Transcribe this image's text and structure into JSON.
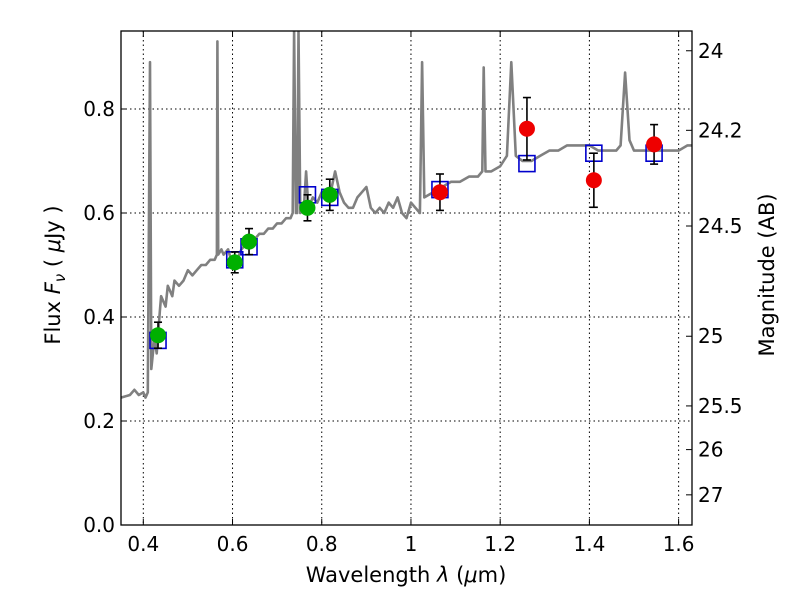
{
  "chart_data": {
    "type": "scatter",
    "xlabel": "Wavelength  λ (μm)",
    "ylabel": "Flux  F_ν  ( μJy )",
    "y2label": "Magnitude (AB)",
    "xlim": [
      0.35,
      1.63
    ],
    "ylim": [
      0.0,
      0.95
    ],
    "grid": true,
    "x_ticks": [
      0.4,
      0.6,
      0.8,
      1.0,
      1.2,
      1.4,
      1.6
    ],
    "x_tick_labels": [
      "0.4",
      "0.6",
      "0.8",
      "1",
      "1.2",
      "1.4",
      "1.6"
    ],
    "y_ticks": [
      0.0,
      0.2,
      0.4,
      0.6,
      0.8
    ],
    "y_tick_labels": [
      "0.0",
      "0.2",
      "0.4",
      "0.6",
      "0.8"
    ],
    "y2_ticks": [
      {
        "label": "24",
        "flux": 0.912
      },
      {
        "label": "24.2",
        "flux": 0.759
      },
      {
        "label": "24.5",
        "flux": 0.575
      },
      {
        "label": "25",
        "flux": 0.363
      },
      {
        "label": "25.5",
        "flux": 0.229
      },
      {
        "label": "26",
        "flux": 0.145
      },
      {
        "label": "27",
        "flux": 0.058
      }
    ],
    "colors": {
      "sed": "#808080",
      "model_box": "#0000cc",
      "optical": "#00b000",
      "infrared": "#ee0000",
      "errorbar": "#000000"
    },
    "series": [
      {
        "kind": "line",
        "color": "#808080",
        "points": [
          [
            0.35,
            0.245
          ],
          [
            0.37,
            0.25
          ],
          [
            0.38,
            0.26
          ],
          [
            0.39,
            0.25
          ],
          [
            0.4,
            0.255
          ],
          [
            0.405,
            0.245
          ],
          [
            0.41,
            0.255
          ],
          [
            0.415,
            0.89
          ],
          [
            0.418,
            0.3
          ],
          [
            0.425,
            0.36
          ],
          [
            0.43,
            0.33
          ],
          [
            0.437,
            0.41
          ],
          [
            0.44,
            0.44
          ],
          [
            0.45,
            0.42
          ],
          [
            0.455,
            0.46
          ],
          [
            0.46,
            0.45
          ],
          [
            0.465,
            0.44
          ],
          [
            0.47,
            0.47
          ],
          [
            0.48,
            0.46
          ],
          [
            0.49,
            0.47
          ],
          [
            0.5,
            0.49
          ],
          [
            0.51,
            0.48
          ],
          [
            0.52,
            0.49
          ],
          [
            0.53,
            0.5
          ],
          [
            0.54,
            0.5
          ],
          [
            0.55,
            0.51
          ],
          [
            0.56,
            0.51
          ],
          [
            0.565,
            0.52
          ],
          [
            0.566,
            0.93
          ],
          [
            0.568,
            0.52
          ],
          [
            0.575,
            0.53
          ],
          [
            0.58,
            0.52
          ],
          [
            0.59,
            0.53
          ],
          [
            0.6,
            0.5
          ],
          [
            0.61,
            0.51
          ],
          [
            0.62,
            0.53
          ],
          [
            0.63,
            0.54
          ],
          [
            0.64,
            0.55
          ],
          [
            0.65,
            0.55
          ],
          [
            0.66,
            0.56
          ],
          [
            0.67,
            0.56
          ],
          [
            0.68,
            0.57
          ],
          [
            0.69,
            0.57
          ],
          [
            0.7,
            0.58
          ],
          [
            0.71,
            0.58
          ],
          [
            0.72,
            0.59
          ],
          [
            0.73,
            0.59
          ],
          [
            0.735,
            0.6
          ],
          [
            0.738,
            0.95
          ],
          [
            0.742,
            0.6
          ],
          [
            0.745,
            0.6
          ],
          [
            0.748,
            0.95
          ],
          [
            0.752,
            0.6
          ],
          [
            0.76,
            0.61
          ],
          [
            0.765,
            0.68
          ],
          [
            0.77,
            0.61
          ],
          [
            0.78,
            0.63
          ],
          [
            0.79,
            0.62
          ],
          [
            0.8,
            0.64
          ],
          [
            0.81,
            0.63
          ],
          [
            0.82,
            0.64
          ],
          [
            0.83,
            0.68
          ],
          [
            0.84,
            0.64
          ],
          [
            0.85,
            0.62
          ],
          [
            0.86,
            0.61
          ],
          [
            0.87,
            0.61
          ],
          [
            0.88,
            0.63
          ],
          [
            0.89,
            0.64
          ],
          [
            0.9,
            0.65
          ],
          [
            0.91,
            0.61
          ],
          [
            0.92,
            0.6
          ],
          [
            0.93,
            0.61
          ],
          [
            0.94,
            0.6
          ],
          [
            0.95,
            0.62
          ],
          [
            0.96,
            0.61
          ],
          [
            0.97,
            0.63
          ],
          [
            0.98,
            0.6
          ],
          [
            0.99,
            0.59
          ],
          [
            1.0,
            0.62
          ],
          [
            1.01,
            0.61
          ],
          [
            1.02,
            0.6
          ],
          [
            1.025,
            0.89
          ],
          [
            1.03,
            0.63
          ],
          [
            1.05,
            0.64
          ],
          [
            1.07,
            0.65
          ],
          [
            1.09,
            0.66
          ],
          [
            1.11,
            0.66
          ],
          [
            1.13,
            0.67
          ],
          [
            1.15,
            0.67
          ],
          [
            1.16,
            0.68
          ],
          [
            1.163,
            0.88
          ],
          [
            1.167,
            0.68
          ],
          [
            1.18,
            0.68
          ],
          [
            1.2,
            0.69
          ],
          [
            1.215,
            0.71
          ],
          [
            1.225,
            0.89
          ],
          [
            1.235,
            0.71
          ],
          [
            1.25,
            0.7
          ],
          [
            1.27,
            0.7
          ],
          [
            1.29,
            0.71
          ],
          [
            1.31,
            0.72
          ],
          [
            1.33,
            0.72
          ],
          [
            1.35,
            0.73
          ],
          [
            1.38,
            0.73
          ],
          [
            1.4,
            0.73
          ],
          [
            1.42,
            0.72
          ],
          [
            1.44,
            0.72
          ],
          [
            1.46,
            0.72
          ],
          [
            1.47,
            0.73
          ],
          [
            1.48,
            0.87
          ],
          [
            1.49,
            0.74
          ],
          [
            1.5,
            0.72
          ],
          [
            1.52,
            0.72
          ],
          [
            1.54,
            0.72
          ],
          [
            1.56,
            0.72
          ],
          [
            1.58,
            0.72
          ],
          [
            1.6,
            0.72
          ],
          [
            1.62,
            0.73
          ],
          [
            1.63,
            0.73
          ]
        ]
      },
      {
        "kind": "square",
        "color": "#0000cc",
        "points": [
          [
            0.433,
            0.355
          ],
          [
            0.605,
            0.51
          ],
          [
            0.637,
            0.535
          ],
          [
            0.768,
            0.635
          ],
          [
            0.818,
            0.63
          ],
          [
            1.065,
            0.645
          ],
          [
            1.26,
            0.695
          ],
          [
            1.41,
            0.715
          ],
          [
            1.545,
            0.715
          ]
        ]
      },
      {
        "kind": "circle",
        "color": "#00b000",
        "points": [
          {
            "x": 0.433,
            "y": 0.365,
            "err": 0.025
          },
          {
            "x": 0.605,
            "y": 0.505,
            "err": 0.02
          },
          {
            "x": 0.637,
            "y": 0.545,
            "err": 0.025
          },
          {
            "x": 0.768,
            "y": 0.61,
            "err": 0.025
          },
          {
            "x": 0.818,
            "y": 0.635,
            "err": 0.03
          }
        ]
      },
      {
        "kind": "circle",
        "color": "#ee0000",
        "points": [
          {
            "x": 1.065,
            "y": 0.64,
            "err": 0.035
          },
          {
            "x": 1.26,
            "y": 0.762,
            "err": 0.06
          },
          {
            "x": 1.41,
            "y": 0.663,
            "err": 0.052
          },
          {
            "x": 1.545,
            "y": 0.732,
            "err": 0.038
          }
        ]
      }
    ]
  }
}
